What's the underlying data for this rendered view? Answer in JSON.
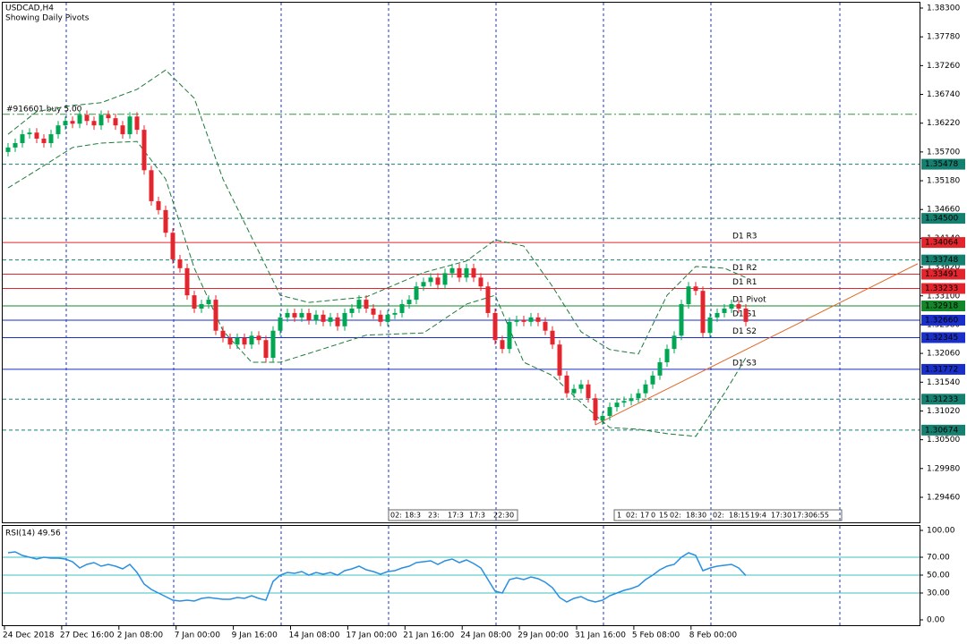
{
  "chart_data": {
    "type": "candlestick",
    "title": "USDCAD,H4",
    "subtitle": "Showing Daily Pivots",
    "bull_color": "#00a651",
    "bear_color": "#e3262d",
    "open": [
      1.357,
      1.3578,
      1.3586,
      1.3602,
      1.3605,
      1.3594,
      1.3586,
      1.3602,
      1.3618,
      1.3626,
      1.3621,
      1.3637,
      1.3626,
      1.3618,
      1.3637,
      1.3631,
      1.3618,
      1.3602,
      1.3634,
      1.361,
      1.3537,
      1.3481,
      1.3465,
      1.3424,
      1.3376,
      1.336,
      1.3311,
      1.3287,
      1.3295,
      1.3303,
      1.3247,
      1.3234,
      1.3222,
      1.3234,
      1.3222,
      1.3238,
      1.323,
      1.3198,
      1.3247,
      1.3271,
      1.3279,
      1.3271,
      1.3279,
      1.3266,
      1.3276,
      1.3263,
      1.3271,
      1.3255,
      1.3279,
      1.3287,
      1.3303,
      1.3287,
      1.3276,
      1.3263,
      1.3276,
      1.3279,
      1.3295,
      1.3303,
      1.3327,
      1.3335,
      1.3343,
      1.333,
      1.3351,
      1.336,
      1.3343,
      1.336,
      1.3343,
      1.3327,
      1.3279,
      1.323,
      1.3214,
      1.3263,
      1.3266,
      1.3263,
      1.3271,
      1.3263,
      1.3247,
      1.3222,
      1.3166,
      1.3134,
      1.3142,
      1.315,
      1.3125,
      1.3085,
      1.3093,
      1.3109,
      1.3117,
      1.312,
      1.3125,
      1.3134,
      1.315,
      1.3166,
      1.319,
      1.3214,
      1.3238,
      1.3295,
      1.3327,
      1.3319,
      1.3243,
      1.3271,
      1.3279,
      1.3287,
      1.3295,
      1.3287
    ],
    "high": [
      1.3586,
      1.3594,
      1.361,
      1.3613,
      1.3613,
      1.3602,
      1.361,
      1.3626,
      1.3634,
      1.3634,
      1.3645,
      1.3645,
      1.3634,
      1.3645,
      1.3645,
      1.3639,
      1.3626,
      1.3642,
      1.3642,
      1.3618,
      1.3545,
      1.3489,
      1.3473,
      1.3432,
      1.3384,
      1.3368,
      1.3319,
      1.3303,
      1.3311,
      1.3311,
      1.3255,
      1.3242,
      1.3242,
      1.3242,
      1.3246,
      1.3246,
      1.3238,
      1.3255,
      1.3279,
      1.3287,
      1.3287,
      1.3287,
      1.3287,
      1.3284,
      1.3284,
      1.3279,
      1.3279,
      1.3287,
      1.3295,
      1.3311,
      1.3311,
      1.3295,
      1.3284,
      1.3284,
      1.3287,
      1.3303,
      1.3311,
      1.3335,
      1.3343,
      1.3351,
      1.3351,
      1.3359,
      1.3368,
      1.3368,
      1.3368,
      1.3368,
      1.3351,
      1.3335,
      1.3287,
      1.3238,
      1.3271,
      1.3274,
      1.3274,
      1.3279,
      1.3279,
      1.3271,
      1.3255,
      1.323,
      1.3174,
      1.315,
      1.3158,
      1.3158,
      1.3133,
      1.3101,
      1.3117,
      1.3125,
      1.3128,
      1.3133,
      1.3142,
      1.3158,
      1.3174,
      1.3198,
      1.3222,
      1.3246,
      1.3303,
      1.3335,
      1.3335,
      1.3327,
      1.3279,
      1.3287,
      1.3295,
      1.3303,
      1.3303,
      1.3295
    ],
    "low": [
      1.3562,
      1.357,
      1.3578,
      1.3594,
      1.3586,
      1.3578,
      1.3578,
      1.3594,
      1.361,
      1.3613,
      1.3613,
      1.3618,
      1.361,
      1.361,
      1.3623,
      1.361,
      1.3594,
      1.3594,
      1.3602,
      1.3529,
      1.3473,
      1.3457,
      1.3416,
      1.3368,
      1.3352,
      1.3303,
      1.3279,
      1.3279,
      1.3287,
      1.3239,
      1.3226,
      1.3214,
      1.3214,
      1.3214,
      1.3214,
      1.3222,
      1.319,
      1.319,
      1.3239,
      1.3263,
      1.3263,
      1.3263,
      1.3258,
      1.3258,
      1.3255,
      1.3255,
      1.3247,
      1.3247,
      1.3271,
      1.3279,
      1.3279,
      1.3268,
      1.3255,
      1.3255,
      1.3268,
      1.3271,
      1.3287,
      1.3295,
      1.3319,
      1.3327,
      1.3322,
      1.3322,
      1.3343,
      1.3335,
      1.3335,
      1.3335,
      1.3319,
      1.3271,
      1.3222,
      1.3206,
      1.3206,
      1.3255,
      1.3255,
      1.3255,
      1.3255,
      1.3239,
      1.3214,
      1.3158,
      1.3126,
      1.3126,
      1.3134,
      1.3117,
      1.3077,
      1.3077,
      1.3085,
      1.3101,
      1.3109,
      1.3112,
      1.3117,
      1.3126,
      1.3142,
      1.3158,
      1.3182,
      1.3206,
      1.323,
      1.3287,
      1.3311,
      1.3235,
      1.3235,
      1.3263,
      1.3271,
      1.3279,
      1.3279,
      1.3255
    ],
    "close": [
      1.3578,
      1.3586,
      1.3602,
      1.3605,
      1.3594,
      1.3586,
      1.3602,
      1.3618,
      1.3626,
      1.3621,
      1.3637,
      1.3626,
      1.3618,
      1.3637,
      1.3631,
      1.3618,
      1.3602,
      1.3634,
      1.361,
      1.3537,
      1.3481,
      1.3465,
      1.3424,
      1.3376,
      1.336,
      1.3311,
      1.3287,
      1.3295,
      1.3303,
      1.3247,
      1.3234,
      1.3222,
      1.3234,
      1.3222,
      1.3238,
      1.323,
      1.3198,
      1.3247,
      1.3271,
      1.3279,
      1.3271,
      1.3279,
      1.3266,
      1.3276,
      1.3263,
      1.3271,
      1.3255,
      1.3279,
      1.3287,
      1.3303,
      1.3287,
      1.3276,
      1.3263,
      1.3276,
      1.3279,
      1.3295,
      1.3303,
      1.3327,
      1.3335,
      1.3343,
      1.333,
      1.3351,
      1.336,
      1.3343,
      1.336,
      1.3343,
      1.3327,
      1.3279,
      1.323,
      1.3214,
      1.3263,
      1.3266,
      1.3263,
      1.3271,
      1.3263,
      1.3247,
      1.3222,
      1.3166,
      1.3134,
      1.3142,
      1.315,
      1.3125,
      1.3085,
      1.3093,
      1.3109,
      1.3117,
      1.312,
      1.3125,
      1.3134,
      1.315,
      1.3166,
      1.319,
      1.3214,
      1.3238,
      1.3295,
      1.3327,
      1.3319,
      1.3243,
      1.3271,
      1.3279,
      1.3287,
      1.3295,
      1.3287,
      1.3263
    ],
    "ylim": [
      1.28991,
      1.38397
    ],
    "yticks": [
      {
        "value": 1.383,
        "label": "1.38300"
      },
      {
        "value": 1.3778,
        "label": "1.37780"
      },
      {
        "value": 1.3726,
        "label": "1.37260"
      },
      {
        "value": 1.3674,
        "label": "1.36740"
      },
      {
        "value": 1.3622,
        "label": "1.36220"
      },
      {
        "value": 1.357,
        "label": "1.35700"
      },
      {
        "value": 1.3518,
        "label": "1.35180"
      },
      {
        "value": 1.3466,
        "label": "1.34660"
      },
      {
        "value": 1.3414,
        "label": "1.34140"
      },
      {
        "value": 1.3362,
        "label": "1.33620"
      },
      {
        "value": 1.331,
        "label": "1.33100"
      },
      {
        "value": 1.3258,
        "label": "1.32580"
      },
      {
        "value": 1.3206,
        "label": "1.32060"
      },
      {
        "value": 1.3154,
        "label": "1.31540"
      },
      {
        "value": 1.3102,
        "label": "1.31020"
      },
      {
        "value": 1.305,
        "label": "1.30500"
      },
      {
        "value": 1.2998,
        "label": "1.29980"
      },
      {
        "value": 1.2946,
        "label": "1.29460"
      }
    ],
    "x_labels": [
      "24 Dec 2018",
      "27 Dec 16:00",
      "2 Jan 08:00",
      "7 Jan 00:00",
      "9 Jan 16:00",
      "14 Jan 08:00",
      "17 Jan 00:00",
      "21 Jan 16:00",
      "24 Jan 08:00",
      "29 Jan 00:00",
      "31 Jan 16:00",
      "5 Feb 08:00",
      "8 Feb 00:00"
    ],
    "bands": {
      "color": "#1e7a3a",
      "index": [
        0,
        4,
        9,
        13,
        18,
        22,
        26,
        30,
        34,
        38,
        42,
        50,
        58,
        64,
        68,
        72,
        76,
        80,
        84,
        88,
        92,
        96,
        100,
        103
      ],
      "upper": [
        1.3602,
        1.3643,
        1.3654,
        1.3659,
        1.3683,
        1.3718,
        1.3667,
        1.3521,
        1.3416,
        1.3311,
        1.3298,
        1.3308,
        1.3352,
        1.3373,
        1.3411,
        1.34,
        1.3327,
        1.3245,
        1.3213,
        1.3205,
        1.3311,
        1.3363,
        1.336,
        1.3343
      ],
      "lower": [
        1.3505,
        1.3537,
        1.3578,
        1.3586,
        1.3589,
        1.3521,
        1.336,
        1.3247,
        1.319,
        1.319,
        1.3206,
        1.3239,
        1.3243,
        1.3295,
        1.3311,
        1.319,
        1.3166,
        1.3117,
        1.3072,
        1.3069,
        1.3061,
        1.3056,
        1.3134,
        1.3198
      ]
    },
    "levels": [
      {
        "price": 1.35478,
        "color": "#15806f",
        "style": "dash"
      },
      {
        "price": {
          "value": 1.345,
          "label": "1.34500"
        },
        "color": "#15806f",
        "style": "dash"
      },
      {
        "price": 1.34064,
        "color": "#e3262d",
        "style": "solid",
        "name": "D1 R3"
      },
      {
        "price": 1.33748,
        "color": "#15806f",
        "style": "dash"
      },
      {
        "price": 1.33491,
        "color": "#e3262d",
        "style": "solid",
        "name": "D1 R2"
      },
      {
        "price": 1.33233,
        "color": "#e3262d",
        "style": "solid",
        "name": "D1 R1"
      },
      {
        "price": 1.32918,
        "color": "#13862a",
        "style": "solid",
        "name": "D1 Pivot"
      },
      {
        "price": {
          "value": 1.3266,
          "label": "1.32660"
        },
        "color": "#1a2fc8",
        "style": "solid",
        "name": "D1 S1"
      },
      {
        "price": 1.32345,
        "color": "#1a2fc8",
        "style": "solid",
        "name": "D1 S2"
      },
      {
        "price": 1.31772,
        "color": "#1a2fc8",
        "style": "solid",
        "name": "D1 S3"
      },
      {
        "price": 1.31233,
        "color": "#15806f",
        "style": "dash"
      },
      {
        "price": 1.30674,
        "color": "#15806f",
        "style": "dash"
      }
    ],
    "order": {
      "label": "#916601 buy 5.00",
      "price": 1.3638,
      "color": "#2e9e3e"
    },
    "trendline": {
      "index": [
        82,
        127
      ],
      "price": [
        1.3077,
        1.3368
      ],
      "color": "#e0682a"
    },
    "tags": [
      [
        "02:",
        "18:3",
        "23:",
        "17:3",
        "17:3",
        "22:30"
      ],
      [
        "1",
        "02:",
        "17",
        "0",
        "15",
        "02:",
        "18:30",
        "02:",
        "18:15",
        "19:4",
        "17:30",
        "17:30",
        "6:55"
      ]
    ],
    "rsi": {
      "title": "RSI(14) 49.56",
      "color": "#2a8fe0",
      "ylim": [
        -7,
        105
      ],
      "yticks": [
        {
          "value": 100,
          "label": "100.00"
        },
        {
          "value": 70,
          "label": "70.00"
        },
        {
          "value": 50,
          "label": "50.00"
        },
        {
          "value": 30,
          "label": "30.00"
        },
        {
          "value": 0,
          "label": "0.00"
        }
      ],
      "levels": [
        70,
        50,
        30
      ],
      "values": [
        75,
        76,
        72,
        70,
        68,
        70,
        69,
        69,
        68,
        65,
        58,
        62,
        64,
        60,
        62,
        60,
        57,
        62,
        53,
        40,
        34,
        30,
        26,
        22,
        21,
        22,
        21,
        24,
        25,
        24,
        23,
        23,
        25,
        24,
        27,
        24,
        22,
        43,
        50,
        53,
        52,
        54,
        50,
        53,
        51,
        53,
        50,
        55,
        57,
        60,
        56,
        54,
        51,
        54,
        55,
        58,
        60,
        64,
        65,
        66,
        62,
        66,
        68,
        64,
        67,
        63,
        58,
        45,
        32,
        30,
        45,
        47,
        45,
        48,
        46,
        42,
        36,
        25,
        20,
        24,
        26,
        22,
        20,
        22,
        27,
        30,
        33,
        35,
        38,
        45,
        50,
        56,
        60,
        62,
        70,
        75,
        72,
        55,
        58,
        60,
        61,
        62,
        58,
        49.56
      ]
    }
  }
}
